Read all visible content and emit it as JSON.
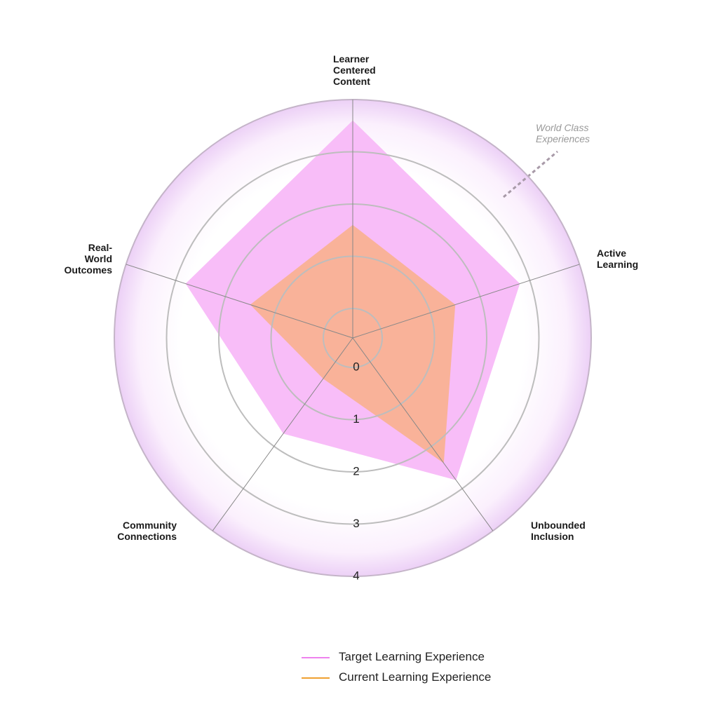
{
  "chart_data": {
    "type": "radar",
    "categories": [
      "Learner Centered Content",
      "Active Learning",
      "Unbounded Inclusion",
      "Community Connections",
      "Real-World Outcomes"
    ],
    "series": [
      {
        "name": "Target Learning Experience",
        "color": "#ee82ee",
        "fill": "#f8bdf8",
        "values": [
          3.6,
          2.8,
          2.8,
          1.7,
          2.8
        ]
      },
      {
        "name": "Current Learning Experience",
        "color": "#f0a030",
        "fill": "#f9b299",
        "values": [
          1.6,
          1.5,
          2.4,
          0.4,
          1.5
        ]
      }
    ],
    "ylim": [
      0,
      4
    ],
    "yticks": [
      0,
      1,
      2,
      3,
      4
    ],
    "grid": true,
    "annotation": "World Class Experiences"
  }
}
